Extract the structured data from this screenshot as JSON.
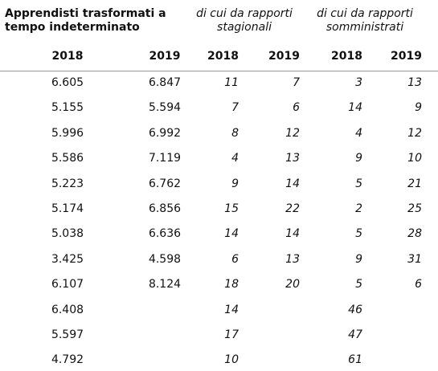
{
  "table": {
    "groups": [
      {
        "lines": [
          "Apprendisti trasformati a",
          "tempo indeterminato"
        ]
      },
      {
        "lines": [
          "di cui da rapporti",
          "stagionali"
        ]
      },
      {
        "lines": [
          "di cui da rapporti",
          "somministrati"
        ]
      }
    ],
    "years": [
      "2018",
      "2019",
      "2018",
      "2019",
      "2018",
      "2019"
    ],
    "rows": [
      [
        "6.605",
        "6.847",
        "11",
        "7",
        "3",
        "13"
      ],
      [
        "5.155",
        "5.594",
        "7",
        "6",
        "14",
        "9"
      ],
      [
        "5.996",
        "6.992",
        "8",
        "12",
        "4",
        "12"
      ],
      [
        "5.586",
        "7.119",
        "4",
        "13",
        "9",
        "10"
      ],
      [
        "5.223",
        "6.762",
        "9",
        "14",
        "5",
        "21"
      ],
      [
        "5.174",
        "6.856",
        "15",
        "22",
        "2",
        "25"
      ],
      [
        "5.038",
        "6.636",
        "14",
        "14",
        "5",
        "28"
      ],
      [
        "3.425",
        "4.598",
        "6",
        "13",
        "9",
        "31"
      ],
      [
        "6.107",
        "8.124",
        "18",
        "20",
        "5",
        "6"
      ],
      [
        "6.408",
        null,
        "14",
        null,
        "46",
        null
      ],
      [
        "5.597",
        null,
        "17",
        null,
        "47",
        null
      ],
      [
        "4.792",
        null,
        "10",
        null,
        "61",
        null
      ]
    ]
  }
}
